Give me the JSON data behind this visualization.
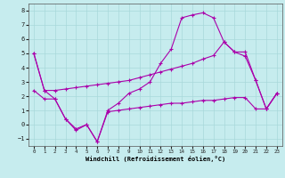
{
  "xlabel": "Windchill (Refroidissement éolien,°C)",
  "bg_color": "#c6ecee",
  "line_color": "#aa00aa",
  "grid_color": "#a8d8da",
  "xlim": [
    -0.5,
    23.5
  ],
  "ylim": [
    -1.5,
    8.5
  ],
  "xticks": [
    0,
    1,
    2,
    3,
    4,
    5,
    6,
    7,
    8,
    9,
    10,
    11,
    12,
    13,
    14,
    15,
    16,
    17,
    18,
    19,
    20,
    21,
    22,
    23
  ],
  "yticks": [
    -1,
    0,
    1,
    2,
    3,
    4,
    5,
    6,
    7,
    8
  ],
  "curve1_x": [
    0,
    1,
    2,
    3,
    4,
    5,
    6,
    7,
    8,
    9,
    10,
    11,
    12,
    13,
    14,
    15,
    16,
    17,
    18,
    19,
    20,
    21,
    22,
    23
  ],
  "curve1_y": [
    5.0,
    2.4,
    1.8,
    0.4,
    -0.4,
    0.0,
    -1.2,
    1.0,
    1.5,
    2.2,
    2.5,
    3.0,
    4.3,
    5.3,
    7.5,
    7.7,
    7.85,
    7.5,
    5.8,
    5.1,
    4.8,
    3.1,
    1.1,
    2.2
  ],
  "curve2_x": [
    0,
    1,
    2,
    3,
    4,
    5,
    6,
    7,
    8,
    9,
    10,
    11,
    12,
    13,
    14,
    15,
    16,
    17,
    18,
    19,
    20,
    21,
    22,
    23
  ],
  "curve2_y": [
    5.0,
    2.4,
    2.4,
    2.5,
    2.6,
    2.7,
    2.8,
    2.9,
    3.0,
    3.1,
    3.3,
    3.5,
    3.7,
    3.9,
    4.1,
    4.3,
    4.6,
    4.85,
    5.8,
    5.1,
    5.1,
    3.1,
    1.1,
    2.2
  ],
  "curve3_x": [
    0,
    1,
    2,
    3,
    4,
    5,
    6,
    7,
    8,
    9,
    10,
    11,
    12,
    13,
    14,
    15,
    16,
    17,
    18,
    19,
    20,
    21,
    22,
    23
  ],
  "curve3_y": [
    2.4,
    1.8,
    1.8,
    0.4,
    -0.3,
    0.0,
    -1.2,
    0.9,
    1.0,
    1.1,
    1.2,
    1.3,
    1.4,
    1.5,
    1.5,
    1.6,
    1.7,
    1.7,
    1.8,
    1.9,
    1.9,
    1.1,
    1.1,
    2.2
  ]
}
